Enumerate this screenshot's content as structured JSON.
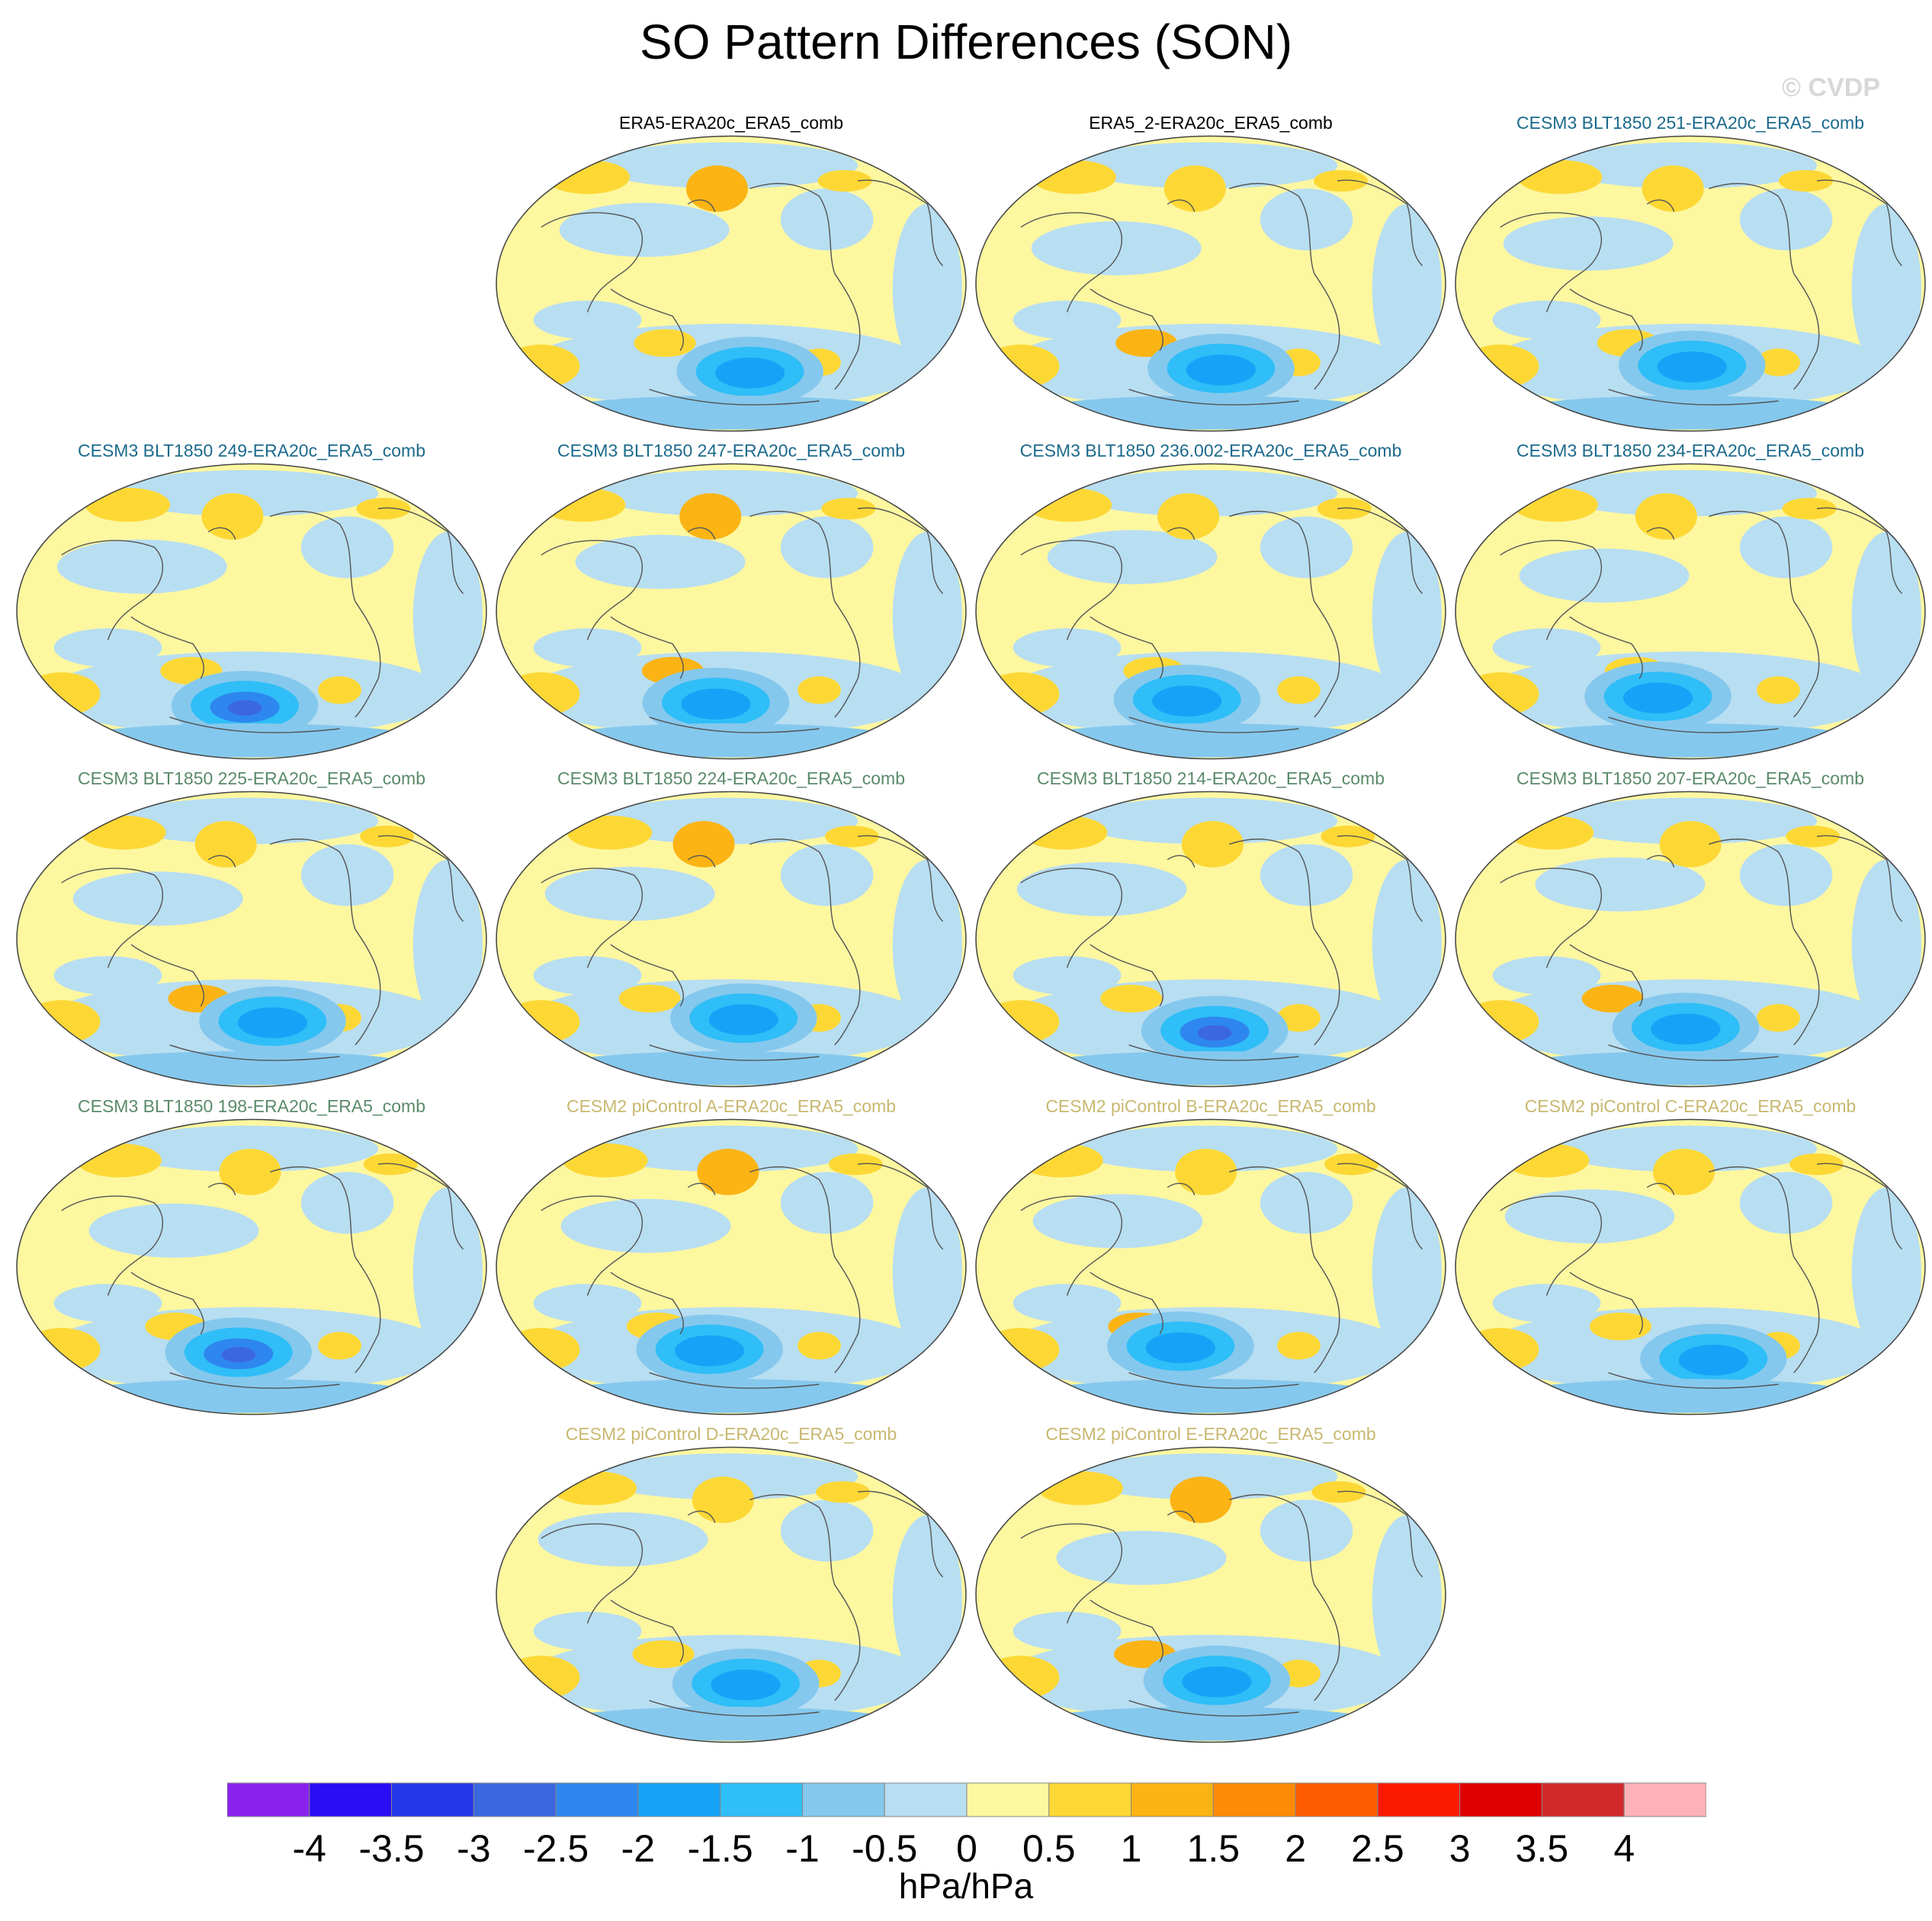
{
  "title": "SO Pattern Differences (SON)",
  "watermark": "© CVDP",
  "chart_data": {
    "type": "heatmap",
    "title": "SO Pattern Differences (SON)",
    "units": "hPa/hPa",
    "projection": "global map (Robinson-like), Pacific-centered",
    "colorbar": {
      "levels": [
        -4,
        -3.5,
        -3,
        -2.5,
        -2,
        -1.5,
        -1,
        -0.5,
        0,
        0.5,
        1,
        1.5,
        2,
        2.5,
        3,
        3.5,
        4
      ],
      "labels": [
        "-4",
        "-3.5",
        "-3",
        "-2.5",
        "-2",
        "-1.5",
        "-1",
        "-0.5",
        "0",
        "0.5",
        "1",
        "1.5",
        "2",
        "2.5",
        "3",
        "3.5",
        "4"
      ],
      "colors": [
        "#8a22ee",
        "#2a0cf5",
        "#2338e8",
        "#3b67e0",
        "#2e87ee",
        "#16a3f7",
        "#2fbef7",
        "#85c8ed",
        "#b8def2",
        "#fdf7a0",
        "#fdd835",
        "#fbb414",
        "#fd8b05",
        "#fd5d00",
        "#fb1a00",
        "#df0000",
        "#d22a2a",
        "#fcb2b6"
      ]
    },
    "panels": [
      {
        "label": "ERA5-ERA20c_ERA5_comb",
        "color": "#000000"
      },
      {
        "label": "ERA5_2-ERA20c_ERA5_comb",
        "color": "#000000"
      },
      {
        "label": "CESM3 BLT1850 251-ERA20c_ERA5_comb",
        "color": "#1c6a8c"
      },
      {
        "label": "CESM3 BLT1850 249-ERA20c_ERA5_comb",
        "color": "#1c6a8c"
      },
      {
        "label": "CESM3 BLT1850 247-ERA20c_ERA5_comb",
        "color": "#1c6a8c"
      },
      {
        "label": "CESM3 BLT1850 236.002-ERA20c_ERA5_comb",
        "color": "#1c6a8c"
      },
      {
        "label": "CESM3 BLT1850 234-ERA20c_ERA5_comb",
        "color": "#1c6a8c"
      },
      {
        "label": "CESM3 BLT1850 225-ERA20c_ERA5_comb",
        "color": "#5a8a6a"
      },
      {
        "label": "CESM3 BLT1850 224-ERA20c_ERA5_comb",
        "color": "#5a8a6a"
      },
      {
        "label": "CESM3 BLT1850 214-ERA20c_ERA5_comb",
        "color": "#5a8a6a"
      },
      {
        "label": "CESM3 BLT1850 207-ERA20c_ERA5_comb",
        "color": "#5a8a6a"
      },
      {
        "label": "CESM3 BLT1850 198-ERA20c_ERA5_comb",
        "color": "#5a8a6a"
      },
      {
        "label": "CESM2 piControl A-ERA20c_ERA5_comb",
        "color": "#c8b870"
      },
      {
        "label": "CESM2 piControl B-ERA20c_ERA5_comb",
        "color": "#c8b870"
      },
      {
        "label": "CESM2 piControl C-ERA20c_ERA5_comb",
        "color": "#c8b870"
      },
      {
        "label": "CESM2 piControl D-ERA20c_ERA5_comb",
        "color": "#c8b870"
      },
      {
        "label": "CESM2 piControl E-ERA20c_ERA5_comb",
        "color": "#c8b870"
      }
    ]
  }
}
